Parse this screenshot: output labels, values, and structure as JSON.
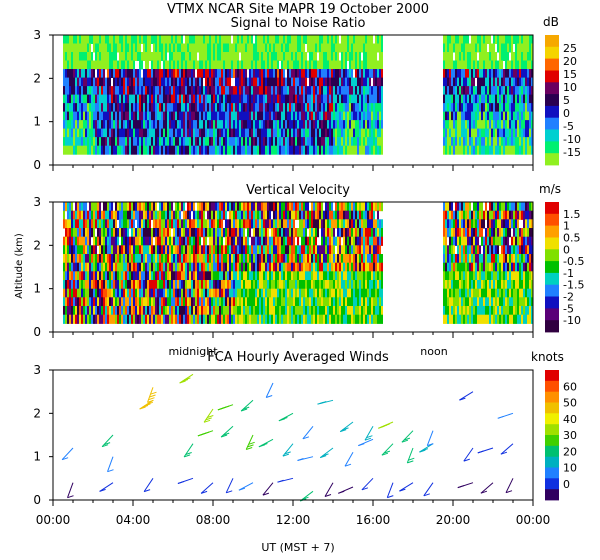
{
  "figure": {
    "title": "VTMX  NCAR Site  MAPR 19 October 2000",
    "xlabel": "UT  (MST + 7)",
    "x_ticks": [
      "00:00",
      "04:00",
      "08:00",
      "12:00",
      "16:00",
      "20:00",
      "00:00"
    ],
    "midnight_label": "midnight",
    "noon_label": "noon"
  },
  "chart_data": [
    {
      "type": "heatmap",
      "title": "Signal to Noise Ratio",
      "ylabel": "",
      "ylim": [
        0,
        3
      ],
      "y_ticks": [
        "0",
        "1",
        "2",
        "3"
      ],
      "xlim_hours": [
        0,
        24
      ],
      "data_extent_hours": [
        [
          0.5,
          16.5
        ],
        [
          19.5,
          24.0
        ]
      ],
      "altitude_extent_km": [
        0.25,
        3.0
      ],
      "colorbar_unit": "dB",
      "colorbar_labels": [
        "25",
        "20",
        "15",
        "10",
        "5",
        "0",
        "-5",
        "-10",
        "-15"
      ],
      "colorbar_colors": [
        "#f6a800",
        "#f5d400",
        "#ff6600",
        "#e00000",
        "#6a0060",
        "#2a0050",
        "#1010c0",
        "#2080ff",
        "#00d0d0",
        "#00f070",
        "#90f020"
      ]
    },
    {
      "type": "heatmap",
      "title": "Vertical Velocity",
      "ylabel": "Altitude (km)",
      "ylim": [
        0,
        3
      ],
      "y_ticks": [
        "0",
        "1",
        "2",
        "3"
      ],
      "xlim_hours": [
        0,
        24
      ],
      "data_extent_hours": [
        [
          0.5,
          16.5
        ],
        [
          19.5,
          24.0
        ]
      ],
      "altitude_extent_km": [
        0.2,
        3.0
      ],
      "colorbar_unit": "m/s",
      "colorbar_labels": [
        "1.5",
        "1",
        "0.5",
        "0",
        "-0.5",
        "-1",
        "-1.5",
        "-2",
        "-5",
        "-10"
      ],
      "colorbar_colors": [
        "#e00000",
        "#ff5000",
        "#ffa000",
        "#f0e000",
        "#80e000",
        "#00c000",
        "#00d0c0",
        "#2080ff",
        "#1010c0",
        "#5a0078",
        "#300040"
      ]
    },
    {
      "type": "scatter",
      "title": "FCA Hourly Averaged Winds",
      "ylabel": "",
      "ylim": [
        0,
        3
      ],
      "y_ticks": [
        "0",
        "1",
        "2",
        "3"
      ],
      "xlim_hours": [
        0,
        24
      ],
      "colorbar_unit": "knots",
      "colorbar_labels": [
        "60",
        "50",
        "40",
        "30",
        "20",
        "10",
        "0"
      ],
      "colorbar_colors": [
        "#e00000",
        "#ff5000",
        "#ff9000",
        "#f0c000",
        "#f0f000",
        "#a0e000",
        "#40d000",
        "#00c070",
        "#00b0c0",
        "#2080ff",
        "#1030e0",
        "#300060"
      ],
      "profiles": [
        {
          "hour": 1.0,
          "altitude_km": [
            0.4,
            1.2
          ],
          "knots": [
            2,
            10
          ]
        },
        {
          "hour": 3.0,
          "altitude_km": [
            0.4,
            1.0,
            1.5
          ],
          "knots": [
            5,
            14,
            20
          ]
        },
        {
          "hour": 5.0,
          "altitude_km": [
            0.5,
            2.3,
            2.6
          ],
          "knots": [
            8,
            42,
            44
          ]
        },
        {
          "hour": 7.0,
          "altitude_km": [
            0.5,
            1.3,
            2.9
          ],
          "knots": [
            6,
            24,
            30
          ]
        },
        {
          "hour": 8.0,
          "altitude_km": [
            0.4,
            1.6,
            2.1
          ],
          "knots": [
            6,
            26,
            30
          ]
        },
        {
          "hour": 9.0,
          "altitude_km": [
            0.5,
            1.7,
            2.2
          ],
          "knots": [
            8,
            22,
            26
          ]
        },
        {
          "hour": 10.0,
          "altitude_km": [
            0.4,
            1.5,
            2.3
          ],
          "knots": [
            10,
            26,
            22
          ]
        },
        {
          "hour": 11.0,
          "altitude_km": [
            0.4,
            1.4,
            2.7
          ],
          "knots": [
            4,
            22,
            14
          ]
        },
        {
          "hour": 12.0,
          "altitude_km": [
            0.5,
            1.3,
            2.0
          ],
          "knots": [
            8,
            18,
            20
          ]
        },
        {
          "hour": 13.0,
          "altitude_km": [
            0.2,
            1.0,
            1.7
          ],
          "knots": [
            20,
            14,
            12
          ]
        },
        {
          "hour": 14.0,
          "altitude_km": [
            0.4,
            1.2,
            2.3
          ],
          "knots": [
            4,
            16,
            18
          ]
        },
        {
          "hour": 15.0,
          "altitude_km": [
            0.3,
            1.1,
            1.8
          ],
          "knots": [
            4,
            14,
            16
          ]
        },
        {
          "hour": 16.0,
          "altitude_km": [
            0.5,
            1.4,
            1.7
          ],
          "knots": [
            6,
            14,
            18
          ]
        },
        {
          "hour": 17.0,
          "altitude_km": [
            0.4,
            1.3,
            1.8
          ],
          "knots": [
            8,
            20,
            30
          ]
        },
        {
          "hour": 18.0,
          "altitude_km": [
            0.4,
            1.2,
            1.6
          ],
          "knots": [
            6,
            20,
            22
          ]
        },
        {
          "hour": 19.0,
          "altitude_km": [
            0.4,
            1.3,
            1.6
          ],
          "knots": [
            6,
            18,
            14
          ]
        },
        {
          "hour": 21.0,
          "altitude_km": [
            0.4,
            1.2,
            2.5
          ],
          "knots": [
            2,
            8,
            6
          ]
        },
        {
          "hour": 22.0,
          "altitude_km": [
            0.4,
            1.2
          ],
          "knots": [
            2,
            6
          ]
        },
        {
          "hour": 23.0,
          "altitude_km": [
            0.5,
            1.3,
            2.0
          ],
          "knots": [
            4,
            8,
            12
          ]
        }
      ]
    }
  ]
}
